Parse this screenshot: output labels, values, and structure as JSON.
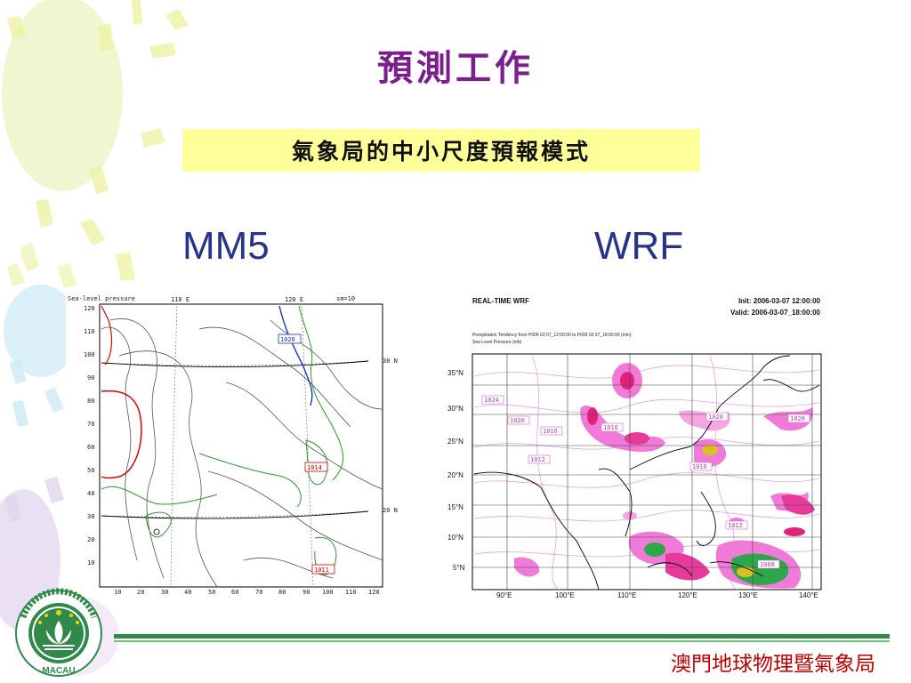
{
  "slide": {
    "title": "預測工作",
    "subtitle": "氣象局的中小尺度預報模式",
    "left_label": "MM5",
    "right_label": "WRF",
    "agency": "澳門地球物理暨氣象局",
    "colors": {
      "title": "#7a1f8c",
      "subtitle_bg": "#ffff99",
      "model_label": "#26338c",
      "agency": "#c00000",
      "footer_line": "#2f8a4a"
    }
  },
  "mm5": {
    "header_left": "Sea-level pressure",
    "header_110": "110 E",
    "header_120": "120 E",
    "header_right": "sm=10",
    "lat_30": "30 N",
    "lat_20": "20 N",
    "y_ticks": [
      "120",
      "110",
      "100",
      "90",
      "80",
      "70",
      "60",
      "50",
      "40",
      "30",
      "20",
      "10"
    ],
    "x_ticks": [
      "10",
      "20",
      "30",
      "40",
      "50",
      "60",
      "70",
      "80",
      "90",
      "100",
      "110",
      "120"
    ],
    "isobars": [
      "1020",
      "1014",
      "1011"
    ]
  },
  "wrf": {
    "title": "REAL-TIME WRF",
    "init": "Init: 2006-03-07  12:00:00",
    "valid": "Valid: 2006-03-07_18:00:00",
    "line1": "Precipitation Tendency from P006 03 07_12:00:00 to P006 03 07_18:00:00  (mm)",
    "line2": "Sea Level Pressure  (mb)",
    "lat_ticks": [
      "35°N",
      "30°N",
      "25°N",
      "20°N",
      "15°N",
      "10°N",
      "5°N"
    ],
    "lon_ticks": [
      "90°E",
      "100°E",
      "110°E",
      "120°E",
      "130°E",
      "140°E"
    ],
    "isobars": [
      "1024",
      "1020",
      "1016",
      "1012",
      "1020",
      "1016",
      "1020",
      "1012",
      "1008",
      "1016"
    ]
  },
  "emblem": {
    "text": "MACAU"
  }
}
